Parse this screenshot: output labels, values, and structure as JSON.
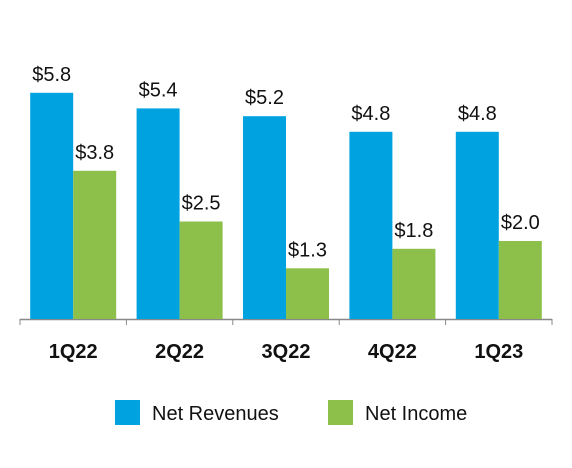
{
  "chart_data": {
    "type": "bar",
    "categories": [
      "1Q22",
      "2Q22",
      "3Q22",
      "4Q22",
      "1Q23"
    ],
    "series": [
      {
        "name": "Net Revenues",
        "color": "#00a3e0",
        "values": [
          5.8,
          5.4,
          5.2,
          4.8,
          4.8
        ],
        "value_labels": [
          "$5.8",
          "$5.4",
          "$5.2",
          "$4.8",
          "$4.8"
        ]
      },
      {
        "name": "Net Income",
        "color": "#8cc04b",
        "values": [
          3.8,
          2.5,
          1.3,
          1.8,
          2.0
        ],
        "value_labels": [
          "$3.8",
          "$2.5",
          "$1.3",
          "$1.8",
          "$2.0"
        ]
      }
    ]
  }
}
